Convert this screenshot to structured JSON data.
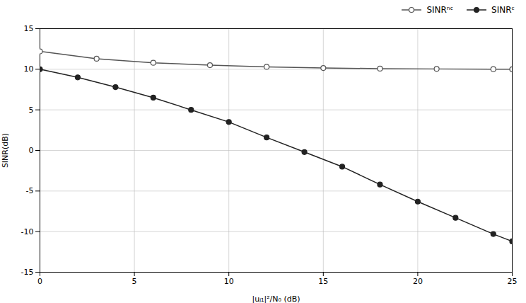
{
  "chart_data": {
    "type": "line",
    "xlabel": "|uⱼ₁|²/N₀ (dB)",
    "ylabel": "SINR(dB)",
    "xlim": [
      0,
      25
    ],
    "ylim": [
      -15,
      15
    ],
    "xticks": [
      0,
      5,
      10,
      15,
      20,
      25
    ],
    "yticks": [
      -15,
      -10,
      -5,
      0,
      5,
      10,
      15
    ],
    "grid": true,
    "legend": "upper right",
    "series": [
      {
        "name": "SINRⁿᶜ",
        "color": "#555555",
        "marker": "open_circle",
        "line_style": "solid",
        "x": [
          0,
          3,
          6,
          9,
          12,
          15,
          18,
          21,
          24,
          25
        ],
        "values": [
          12.2,
          11.3,
          10.8,
          10.5,
          10.3,
          10.15,
          10.08,
          10.04,
          10.01,
          10.0
        ]
      },
      {
        "name": "SINRᶜ",
        "color": "#222222",
        "marker": "filled_circle",
        "line_style": "solid",
        "x": [
          0,
          2,
          4,
          6,
          8,
          10,
          12,
          14,
          16,
          18,
          20,
          22,
          24,
          25
        ],
        "values": [
          10.0,
          9.0,
          7.8,
          6.5,
          5.0,
          3.5,
          1.6,
          -0.2,
          -2.0,
          -4.2,
          -6.3,
          -8.3,
          -10.3,
          -11.2
        ]
      }
    ]
  }
}
